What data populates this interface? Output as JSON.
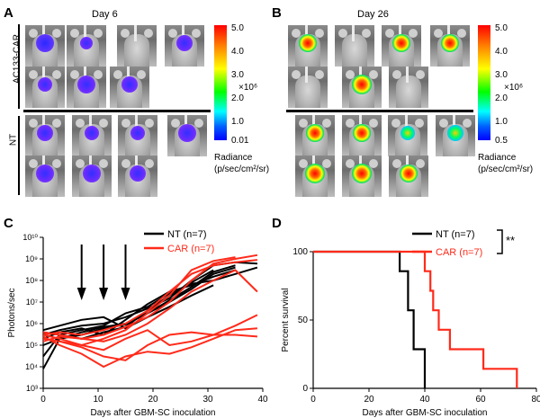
{
  "panels": {
    "a": {
      "letter": "A",
      "day": "Day 6",
      "group_top": "AC133-CAR",
      "group_bottom": "NT",
      "scale": {
        "ticks": [
          "5.0",
          "4.0",
          "3.0",
          "2.0",
          "1.0",
          "0.01"
        ],
        "multiplier": "×10⁶",
        "title": "Radiance",
        "unit": "(p/sec/cm²/sr)"
      }
    },
    "b": {
      "letter": "B",
      "day": "Day 26",
      "scale": {
        "ticks": [
          "5.0",
          "4.0",
          "3.0",
          "2.0",
          "1.0",
          "0.5"
        ],
        "multiplier": "×10⁶",
        "title": "Radiance",
        "unit": "(p/sec/cm²/sr)"
      }
    },
    "c": {
      "letter": "C"
    },
    "d": {
      "letter": "D"
    }
  },
  "chart_data": [
    {
      "type": "line",
      "panel": "C",
      "ylabel": "Photons/sec",
      "xlabel": "Days after GBM-SC inoculation",
      "yscale": "log",
      "ylim": [
        1000,
        10000000000
      ],
      "xlim": [
        0,
        40
      ],
      "xticks": [
        0,
        10,
        20,
        30,
        40
      ],
      "yticks": [
        {
          "v": 1000,
          "t": "10³"
        },
        {
          "v": 10000,
          "t": "10⁴"
        },
        {
          "v": 100000,
          "t": "10⁵"
        },
        {
          "v": 1000000,
          "t": "10⁶"
        },
        {
          "v": 10000000,
          "t": "10⁷"
        },
        {
          "v": 100000000,
          "t": "10⁸"
        },
        {
          "v": 1000000000,
          "t": "10⁹"
        },
        {
          "v": 10000000000,
          "t": "10¹⁰"
        }
      ],
      "arrows_days": [
        7,
        11,
        15
      ],
      "legend": [
        {
          "label": "NT (n=7)",
          "color": "#000000"
        },
        {
          "label": "CAR (n=7)",
          "color": "#ff2a1a"
        }
      ],
      "series": [
        {
          "group": "NT",
          "color": "#000000",
          "points": [
            [
              0,
              8000
            ],
            [
              3,
              200000
            ],
            [
              7,
              300000
            ],
            [
              11,
              600000
            ],
            [
              15,
              900000
            ],
            [
              19,
              3000000
            ],
            [
              23,
              10000000
            ],
            [
              27,
              40000000
            ],
            [
              31,
              200000000
            ],
            [
              35,
              400000000
            ]
          ]
        },
        {
          "group": "NT",
          "color": "#000000",
          "points": [
            [
              0,
              30000
            ],
            [
              3,
              300000
            ],
            [
              7,
              200000
            ],
            [
              11,
              400000
            ],
            [
              15,
              700000
            ],
            [
              19,
              4000000
            ],
            [
              23,
              20000000
            ],
            [
              27,
              80000000
            ],
            [
              31,
              300000000
            ]
          ]
        },
        {
          "group": "NT",
          "color": "#000000",
          "points": [
            [
              0,
              200000
            ],
            [
              3,
              400000
            ],
            [
              7,
              600000
            ],
            [
              11,
              300000
            ],
            [
              15,
              1500000
            ],
            [
              19,
              8000000
            ],
            [
              23,
              30000000
            ],
            [
              27,
              60000000
            ],
            [
              31,
              150000000
            ],
            [
              35,
              300000000
            ]
          ]
        },
        {
          "group": "NT",
          "color": "#000000",
          "points": [
            [
              0,
              300000
            ],
            [
              3,
              500000
            ],
            [
              7,
              800000
            ],
            [
              11,
              1000000
            ],
            [
              15,
              2000000
            ],
            [
              19,
              5000000
            ],
            [
              23,
              15000000
            ],
            [
              27,
              100000000
            ],
            [
              31,
              500000000
            ],
            [
              35,
              700000000
            ],
            [
              39,
              600000000
            ]
          ]
        },
        {
          "group": "NT",
          "color": "#000000",
          "points": [
            [
              0,
              500000
            ],
            [
              3,
              800000
            ],
            [
              7,
              1500000
            ],
            [
              11,
              2000000
            ],
            [
              15,
              600000
            ],
            [
              19,
              2000000
            ],
            [
              23,
              6000000
            ],
            [
              27,
              20000000
            ],
            [
              31,
              60000000
            ]
          ]
        },
        {
          "group": "NT",
          "color": "#000000",
          "points": [
            [
              0,
              100000
            ],
            [
              3,
              200000
            ],
            [
              7,
              400000
            ],
            [
              11,
              700000
            ],
            [
              15,
              1000000
            ],
            [
              19,
              3000000
            ],
            [
              23,
              12000000
            ],
            [
              27,
              50000000
            ],
            [
              31,
              250000000
            ],
            [
              35,
              500000000
            ]
          ]
        },
        {
          "group": "NT",
          "color": "#000000",
          "points": [
            [
              0,
              400000
            ],
            [
              3,
              300000
            ],
            [
              7,
              500000
            ],
            [
              11,
              800000
            ],
            [
              15,
              3000000
            ],
            [
              19,
              6000000
            ],
            [
              23,
              25000000
            ],
            [
              27,
              70000000
            ],
            [
              31,
              100000000
            ],
            [
              35,
              200000000
            ],
            [
              39,
              400000000
            ]
          ]
        },
        {
          "group": "CAR",
          "color": "#ff2a1a",
          "points": [
            [
              0,
              400000
            ],
            [
              3,
              300000
            ],
            [
              7,
              200000
            ],
            [
              11,
              300000
            ],
            [
              15,
              700000
            ],
            [
              19,
              2000000
            ],
            [
              23,
              10000000
            ],
            [
              27,
              100000000
            ],
            [
              31,
              600000000
            ],
            [
              35,
              1000000000
            ],
            [
              39,
              1500000000
            ]
          ]
        },
        {
          "group": "CAR",
          "color": "#ff2a1a",
          "points": [
            [
              0,
              200000
            ],
            [
              3,
              150000
            ],
            [
              7,
              100000
            ],
            [
              11,
              200000
            ],
            [
              15,
              500000
            ],
            [
              19,
              3000000
            ],
            [
              23,
              20000000
            ],
            [
              27,
              300000000
            ],
            [
              31,
              800000000
            ],
            [
              35,
              1200000000
            ]
          ]
        },
        {
          "group": "CAR",
          "color": "#ff2a1a",
          "points": [
            [
              0,
              300000
            ],
            [
              3,
              400000
            ],
            [
              7,
              300000
            ],
            [
              11,
              500000
            ],
            [
              15,
              1000000
            ],
            [
              19,
              4000000
            ],
            [
              23,
              30000000
            ],
            [
              27,
              200000000
            ],
            [
              31,
              500000000
            ],
            [
              35,
              700000000
            ],
            [
              39,
              900000000
            ]
          ]
        },
        {
          "group": "CAR",
          "color": "#ff2a1a",
          "points": [
            [
              0,
              150000
            ],
            [
              3,
              250000
            ],
            [
              7,
              200000
            ],
            [
              11,
              150000
            ],
            [
              15,
              300000
            ],
            [
              19,
              1000000
            ],
            [
              23,
              5000000
            ],
            [
              27,
              30000000
            ],
            [
              31,
              100000000
            ],
            [
              35,
              300000000
            ],
            [
              39,
              30000000
            ]
          ]
        },
        {
          "group": "CAR",
          "color": "#ff2a1a",
          "points": [
            [
              0,
              300000
            ],
            [
              3,
              200000
            ],
            [
              7,
              100000
            ],
            [
              11,
              60000
            ],
            [
              15,
              200000
            ],
            [
              19,
              500000
            ],
            [
              23,
              100000
            ],
            [
              27,
              150000
            ],
            [
              31,
              300000
            ],
            [
              35,
              800000
            ],
            [
              39,
              2500000
            ]
          ]
        },
        {
          "group": "CAR",
          "color": "#ff2a1a",
          "points": [
            [
              0,
              200000
            ],
            [
              3,
              150000
            ],
            [
              7,
              80000
            ],
            [
              11,
              30000
            ],
            [
              15,
              20000
            ],
            [
              19,
              100000
            ],
            [
              23,
              300000
            ],
            [
              27,
              400000
            ],
            [
              31,
              300000
            ],
            [
              35,
              300000
            ],
            [
              39,
              250000
            ]
          ]
        },
        {
          "group": "CAR",
          "color": "#ff2a1a",
          "points": [
            [
              0,
              250000
            ],
            [
              3,
              100000
            ],
            [
              7,
              40000
            ],
            [
              11,
              10000
            ],
            [
              15,
              30000
            ],
            [
              19,
              50000
            ],
            [
              23,
              40000
            ],
            [
              27,
              80000
            ],
            [
              31,
              200000
            ],
            [
              35,
              500000
            ],
            [
              39,
              600000
            ]
          ]
        }
      ]
    },
    {
      "type": "line",
      "panel": "D",
      "ylabel": "Percent survival",
      "xlabel": "Days after GBM-SC inoculation",
      "xlim": [
        0,
        80
      ],
      "ylim": [
        0,
        100
      ],
      "xticks": [
        0,
        20,
        40,
        60,
        80
      ],
      "yticks": [
        0,
        50,
        100
      ],
      "significance": "**",
      "legend": [
        {
          "label": "NT (n=7)",
          "color": "#000000"
        },
        {
          "label": "CAR (n=7)",
          "color": "#ff2a1a"
        }
      ],
      "series": [
        {
          "group": "NT",
          "color": "#000000",
          "steps": [
            [
              0,
              100
            ],
            [
              31,
              100
            ],
            [
              31,
              85.7
            ],
            [
              34,
              85.7
            ],
            [
              34,
              57.1
            ],
            [
              36,
              57.1
            ],
            [
              36,
              28.6
            ],
            [
              40,
              28.6
            ],
            [
              40,
              0
            ]
          ]
        },
        {
          "group": "CAR",
          "color": "#ff2a1a",
          "steps": [
            [
              0,
              100
            ],
            [
              40,
              100
            ],
            [
              40,
              85.7
            ],
            [
              42,
              85.7
            ],
            [
              42,
              71.4
            ],
            [
              43,
              71.4
            ],
            [
              43,
              57.1
            ],
            [
              45,
              57.1
            ],
            [
              45,
              42.9
            ],
            [
              49,
              42.9
            ],
            [
              49,
              28.6
            ],
            [
              61,
              28.6
            ],
            [
              61,
              14.3
            ],
            [
              73,
              14.3
            ],
            [
              73,
              0
            ]
          ]
        }
      ]
    }
  ]
}
